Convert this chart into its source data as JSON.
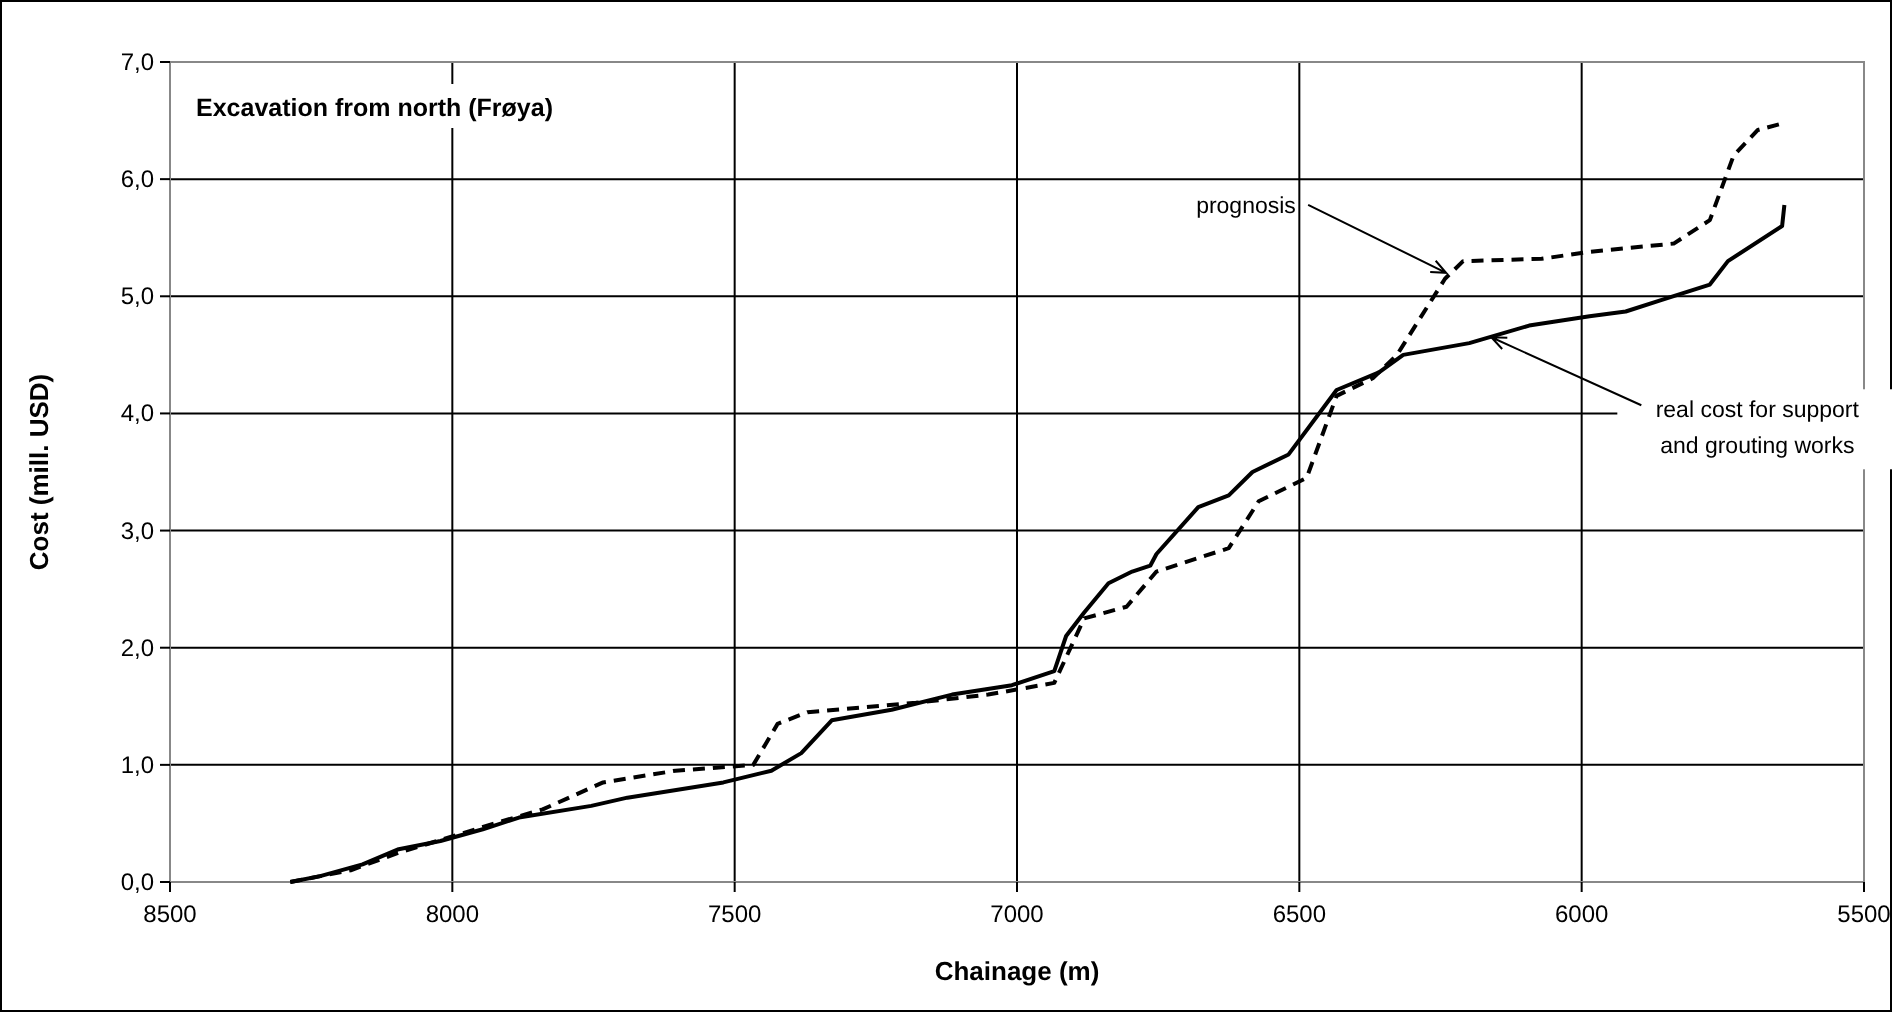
{
  "chart_data": {
    "type": "line",
    "title": "Excavation from north  (Frøya)",
    "xlabel": "Chainage (m)",
    "ylabel": "Cost  (mill. USD)",
    "xlim": [
      8500,
      5500
    ],
    "xticks": [
      8500,
      8000,
      7500,
      7000,
      6500,
      6000,
      5500
    ],
    "ylim": [
      0,
      7
    ],
    "yticks": [
      {
        "value": 0,
        "label": "0,0"
      },
      {
        "value": 1,
        "label": "1,0"
      },
      {
        "value": 2,
        "label": "2,0"
      },
      {
        "value": 3,
        "label": "3,0"
      },
      {
        "value": 4,
        "label": "4,0"
      },
      {
        "value": 5,
        "label": "5,0"
      },
      {
        "value": 6,
        "label": "6,0"
      },
      {
        "value": 7,
        "label": "7,0"
      }
    ],
    "grid": true,
    "series": [
      {
        "color": "#000000",
        "line_style": "solid",
        "x": [
          8287,
          8234,
          8159,
          8095,
          8021,
          7946,
          7882,
          7754,
          7690,
          7520,
          7435,
          7382,
          7328,
          7222,
          7115,
          7009,
          6934,
          6913,
          6881,
          6838,
          6796,
          6764,
          6753,
          6679,
          6625,
          6583,
          6519,
          6434,
          6359,
          6316,
          6199,
          6093,
          5986,
          5922,
          5858,
          5773,
          5741,
          5645,
          5641
        ],
        "values": [
          0,
          0.05,
          0.15,
          0.28,
          0.35,
          0.45,
          0.55,
          0.65,
          0.72,
          0.85,
          0.95,
          1.1,
          1.38,
          1.47,
          1.6,
          1.68,
          1.8,
          2.1,
          2.3,
          2.55,
          2.65,
          2.7,
          2.8,
          3.2,
          3.3,
          3.5,
          3.65,
          4.2,
          4.35,
          4.5,
          4.6,
          4.75,
          4.83,
          4.87,
          4.97,
          5.1,
          5.3,
          5.6,
          5.78
        ]
      },
      {
        "color": "#000000",
        "line_style": "dashed",
        "x": [
          8287,
          8180,
          8095,
          7925,
          7840,
          7733,
          7605,
          7467,
          7424,
          7371,
          7179,
          7051,
          6934,
          6881,
          6806,
          6753,
          6625,
          6572,
          6487,
          6434,
          6370,
          6327,
          6242,
          6210,
          6071,
          5986,
          5837,
          5773,
          5731,
          5688,
          5641
        ],
        "values": [
          0,
          0.1,
          0.25,
          0.5,
          0.62,
          0.85,
          0.95,
          1.0,
          1.35,
          1.45,
          1.53,
          1.6,
          1.7,
          2.25,
          2.35,
          2.65,
          2.85,
          3.25,
          3.45,
          4.15,
          4.3,
          4.5,
          5.15,
          5.3,
          5.32,
          5.38,
          5.45,
          5.65,
          6.2,
          6.42,
          6.48
        ]
      }
    ],
    "annotations": [
      {
        "text": "prognosis",
        "x": 6240,
        "y": 5.2
      },
      {
        "text": "real cost for support and grouting works",
        "x": 6160,
        "y": 4.65
      }
    ]
  }
}
